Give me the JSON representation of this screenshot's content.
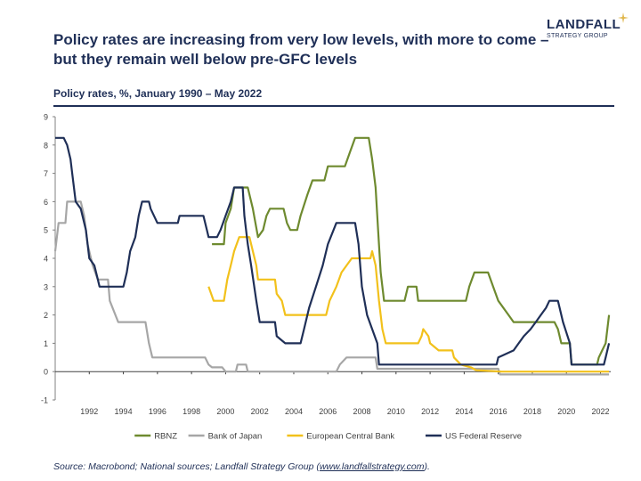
{
  "header": {
    "title": "Policy rates are increasing from very low levels, with more to come – but they remain well below pre-GFC levels",
    "logo_name": "LANDFALL",
    "logo_sub": "STRATEGY GROUP",
    "subtitle": "Policy rates, %, January 1990 – May 2022"
  },
  "footer": {
    "source_prefix": "Source: Macrobond; National sources; Landfall Strategy Group (",
    "source_link": "www.landfallstrategy.com",
    "source_suffix": ")."
  },
  "chart_data": {
    "type": "line",
    "title": "Policy rates, %, January 1990 – May 2022",
    "xlabel": "",
    "ylabel": "%",
    "xlim": [
      1990,
      2022.6
    ],
    "ylim": [
      -1,
      9
    ],
    "yticks": [
      -1,
      0,
      1,
      2,
      3,
      4,
      5,
      6,
      7,
      8,
      9
    ],
    "xticks": [
      1992,
      1994,
      1996,
      1998,
      2000,
      2002,
      2004,
      2006,
      2008,
      2010,
      2012,
      2014,
      2016,
      2018,
      2020,
      2022
    ],
    "legend_position": "bottom",
    "grid": false,
    "series": [
      {
        "name": "RBNZ",
        "color": "#6e8a2f",
        "points": [
          [
            1999.2,
            4.5
          ],
          [
            1999.9,
            4.5
          ],
          [
            2000.0,
            5.25
          ],
          [
            2000.3,
            5.75
          ],
          [
            2000.5,
            6.5
          ],
          [
            2001.3,
            6.5
          ],
          [
            2001.6,
            5.75
          ],
          [
            2001.9,
            4.75
          ],
          [
            2002.2,
            5.0
          ],
          [
            2002.4,
            5.5
          ],
          [
            2002.6,
            5.75
          ],
          [
            2003.4,
            5.75
          ],
          [
            2003.6,
            5.25
          ],
          [
            2003.8,
            5.0
          ],
          [
            2004.2,
            5.0
          ],
          [
            2004.4,
            5.5
          ],
          [
            2004.8,
            6.25
          ],
          [
            2005.1,
            6.75
          ],
          [
            2005.8,
            6.75
          ],
          [
            2006.0,
            7.25
          ],
          [
            2007.0,
            7.25
          ],
          [
            2007.3,
            7.75
          ],
          [
            2007.6,
            8.25
          ],
          [
            2008.4,
            8.25
          ],
          [
            2008.6,
            7.5
          ],
          [
            2008.8,
            6.5
          ],
          [
            2008.95,
            5.0
          ],
          [
            2009.1,
            3.5
          ],
          [
            2009.3,
            2.5
          ],
          [
            2010.5,
            2.5
          ],
          [
            2010.7,
            3.0
          ],
          [
            2011.2,
            3.0
          ],
          [
            2011.3,
            2.5
          ],
          [
            2014.1,
            2.5
          ],
          [
            2014.3,
            3.0
          ],
          [
            2014.6,
            3.5
          ],
          [
            2015.4,
            3.5
          ],
          [
            2015.7,
            3.0
          ],
          [
            2016.0,
            2.5
          ],
          [
            2016.6,
            2.0
          ],
          [
            2016.9,
            1.75
          ],
          [
            2019.3,
            1.75
          ],
          [
            2019.5,
            1.5
          ],
          [
            2019.7,
            1.0
          ],
          [
            2020.2,
            1.0
          ],
          [
            2020.3,
            0.25
          ],
          [
            2021.8,
            0.25
          ],
          [
            2021.9,
            0.5
          ],
          [
            2022.1,
            0.75
          ],
          [
            2022.3,
            1.0
          ],
          [
            2022.4,
            1.5
          ],
          [
            2022.5,
            2.0
          ]
        ]
      },
      {
        "name": "Bank of Japan",
        "color": "#a6a6a6",
        "points": [
          [
            1990.0,
            4.25
          ],
          [
            1990.2,
            5.25
          ],
          [
            1990.6,
            5.25
          ],
          [
            1990.7,
            6.0
          ],
          [
            1991.5,
            6.0
          ],
          [
            1991.7,
            5.5
          ],
          [
            1991.9,
            4.5
          ],
          [
            1992.2,
            3.75
          ],
          [
            1992.5,
            3.25
          ],
          [
            1993.1,
            3.25
          ],
          [
            1993.2,
            2.5
          ],
          [
            1993.7,
            1.75
          ],
          [
            1995.3,
            1.75
          ],
          [
            1995.5,
            1.0
          ],
          [
            1995.7,
            0.5
          ],
          [
            1998.8,
            0.5
          ],
          [
            1999.0,
            0.25
          ],
          [
            1999.2,
            0.15
          ],
          [
            1999.8,
            0.15
          ],
          [
            2000.0,
            0.0
          ],
          [
            2000.6,
            0.0
          ],
          [
            2000.7,
            0.25
          ],
          [
            2001.2,
            0.25
          ],
          [
            2001.3,
            0.0
          ],
          [
            2006.5,
            0.0
          ],
          [
            2006.7,
            0.25
          ],
          [
            2007.1,
            0.5
          ],
          [
            2008.8,
            0.5
          ],
          [
            2008.9,
            0.1
          ],
          [
            2016.0,
            0.1
          ],
          [
            2016.1,
            -0.1
          ],
          [
            2022.5,
            -0.1
          ]
        ]
      },
      {
        "name": "European Central Bank",
        "color": "#f2c11b",
        "points": [
          [
            1999.0,
            3.0
          ],
          [
            1999.3,
            2.5
          ],
          [
            1999.9,
            2.5
          ],
          [
            2000.1,
            3.25
          ],
          [
            2000.3,
            3.75
          ],
          [
            2000.5,
            4.25
          ],
          [
            2000.8,
            4.75
          ],
          [
            2001.4,
            4.75
          ],
          [
            2001.6,
            4.25
          ],
          [
            2001.8,
            3.75
          ],
          [
            2001.9,
            3.25
          ],
          [
            2002.9,
            3.25
          ],
          [
            2003.0,
            2.75
          ],
          [
            2003.3,
            2.5
          ],
          [
            2003.5,
            2.0
          ],
          [
            2005.9,
            2.0
          ],
          [
            2006.1,
            2.5
          ],
          [
            2006.5,
            3.0
          ],
          [
            2006.8,
            3.5
          ],
          [
            2007.1,
            3.75
          ],
          [
            2007.4,
            4.0
          ],
          [
            2008.5,
            4.0
          ],
          [
            2008.6,
            4.25
          ],
          [
            2008.8,
            3.75
          ],
          [
            2009.0,
            2.5
          ],
          [
            2009.2,
            1.5
          ],
          [
            2009.4,
            1.0
          ],
          [
            2011.3,
            1.0
          ],
          [
            2011.5,
            1.25
          ],
          [
            2011.6,
            1.5
          ],
          [
            2011.9,
            1.25
          ],
          [
            2012.0,
            1.0
          ],
          [
            2012.5,
            0.75
          ],
          [
            2013.3,
            0.75
          ],
          [
            2013.4,
            0.5
          ],
          [
            2013.8,
            0.25
          ],
          [
            2014.4,
            0.15
          ],
          [
            2014.7,
            0.05
          ],
          [
            2016.2,
            0.0
          ],
          [
            2022.5,
            0.0
          ]
        ]
      },
      {
        "name": "US Federal Reserve",
        "color": "#1f2f57",
        "points": [
          [
            1990.0,
            8.25
          ],
          [
            1990.5,
            8.25
          ],
          [
            1990.7,
            8.0
          ],
          [
            1990.9,
            7.5
          ],
          [
            1991.0,
            7.0
          ],
          [
            1991.2,
            6.0
          ],
          [
            1991.5,
            5.75
          ],
          [
            1991.8,
            5.0
          ],
          [
            1992.0,
            4.0
          ],
          [
            1992.3,
            3.75
          ],
          [
            1992.5,
            3.25
          ],
          [
            1992.6,
            3.0
          ],
          [
            1994.0,
            3.0
          ],
          [
            1994.2,
            3.5
          ],
          [
            1994.4,
            4.25
          ],
          [
            1994.7,
            4.75
          ],
          [
            1994.9,
            5.5
          ],
          [
            1995.1,
            6.0
          ],
          [
            1995.5,
            6.0
          ],
          [
            1995.6,
            5.75
          ],
          [
            1996.0,
            5.25
          ],
          [
            1997.2,
            5.25
          ],
          [
            1997.3,
            5.5
          ],
          [
            1998.7,
            5.5
          ],
          [
            1998.9,
            5.0
          ],
          [
            1999.0,
            4.75
          ],
          [
            1999.5,
            4.75
          ],
          [
            1999.7,
            5.0
          ],
          [
            2000.0,
            5.5
          ],
          [
            2000.3,
            6.0
          ],
          [
            2000.5,
            6.5
          ],
          [
            2001.0,
            6.5
          ],
          [
            2001.1,
            5.5
          ],
          [
            2001.3,
            4.5
          ],
          [
            2001.5,
            3.75
          ],
          [
            2001.8,
            2.5
          ],
          [
            2002.0,
            1.75
          ],
          [
            2002.9,
            1.75
          ],
          [
            2003.0,
            1.25
          ],
          [
            2003.5,
            1.0
          ],
          [
            2004.4,
            1.0
          ],
          [
            2004.6,
            1.5
          ],
          [
            2004.9,
            2.25
          ],
          [
            2005.3,
            3.0
          ],
          [
            2005.7,
            3.75
          ],
          [
            2006.0,
            4.5
          ],
          [
            2006.5,
            5.25
          ],
          [
            2007.6,
            5.25
          ],
          [
            2007.8,
            4.5
          ],
          [
            2008.0,
            3.0
          ],
          [
            2008.3,
            2.0
          ],
          [
            2008.9,
            1.0
          ],
          [
            2009.0,
            0.25
          ],
          [
            2015.9,
            0.25
          ],
          [
            2016.0,
            0.5
          ],
          [
            2016.9,
            0.75
          ],
          [
            2017.2,
            1.0
          ],
          [
            2017.5,
            1.25
          ],
          [
            2017.9,
            1.5
          ],
          [
            2018.2,
            1.75
          ],
          [
            2018.5,
            2.0
          ],
          [
            2018.8,
            2.25
          ],
          [
            2019.0,
            2.5
          ],
          [
            2019.5,
            2.5
          ],
          [
            2019.6,
            2.25
          ],
          [
            2019.8,
            1.75
          ],
          [
            2020.2,
            1.0
          ],
          [
            2020.3,
            0.25
          ],
          [
            2022.2,
            0.25
          ],
          [
            2022.3,
            0.5
          ],
          [
            2022.5,
            1.0
          ]
        ]
      }
    ]
  }
}
